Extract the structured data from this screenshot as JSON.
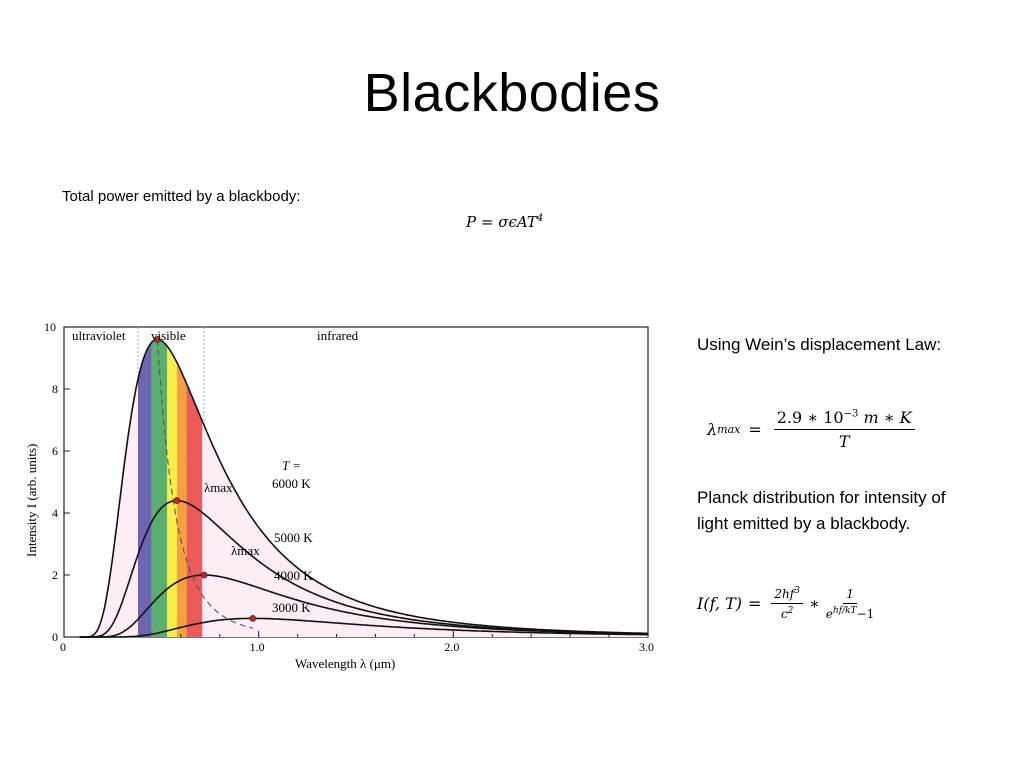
{
  "title": "Blackbodies",
  "intro_text": "Total power emitted by a blackbody:",
  "power_formula": {
    "lhs": "P",
    "eq": "=",
    "rhs": "σϵAT",
    "exp": "4"
  },
  "wien_text": "Using Wein’s displacement Law:",
  "wien_formula": {
    "lhs": "λ",
    "sub": "max",
    "eq": "=",
    "num": "2.9 ∗ 10",
    "num_exp": "−3",
    "num_units": " m ∗ K",
    "den": "T"
  },
  "planck_text": "Planck distribution for intensity of light emitted by a blackbody.",
  "planck_formula": {
    "lhs": "I(f, T)",
    "eq": "=",
    "frac1_num": "2hf",
    "frac1_num_exp": "3",
    "frac1_den": "c",
    "frac1_den_exp": "2",
    "times": "∗",
    "frac2_num": "1",
    "frac2_den_base": "e",
    "frac2_den_exp": "hf/kT",
    "frac2_den_rest": "−1"
  },
  "figure": {
    "regions": {
      "uv": "ultraviolet",
      "visible": "visible",
      "ir": "infrared"
    },
    "t_label": "T =",
    "lambda_max": "λmax",
    "x_axis_label": "Wavelength  λ  (μm)",
    "y_axis_label": "Intensity  I  (arb. units)",
    "colors": {
      "fill": "#fcedf7",
      "violet": "#6f66b2",
      "green": "#5aae70",
      "yellow": "#f6ef4a",
      "orange": "#f5a23c",
      "red": "#ec5a5a",
      "peak_dot": "#cc2222"
    }
  },
  "chart_data": {
    "type": "line",
    "xlabel": "Wavelength λ (μm)",
    "ylabel": "Intensity I (arb. units)",
    "xlim": [
      0,
      3.0
    ],
    "ylim": [
      0,
      10
    ],
    "x_ticks": [
      "0",
      "1.0",
      "2.0",
      "3.0"
    ],
    "y_ticks": [
      "0",
      "2",
      "4",
      "6",
      "8",
      "10"
    ],
    "series": [
      {
        "name": "6000 K",
        "peak_x": 0.48,
        "peak_y": 9.6
      },
      {
        "name": "5000 K",
        "peak_x": 0.58,
        "peak_y": 4.4
      },
      {
        "name": "4000 K",
        "peak_x": 0.72,
        "peak_y": 2.0
      },
      {
        "name": "3000 K",
        "peak_x": 0.97,
        "peak_y": 0.6
      }
    ],
    "grid": false
  }
}
